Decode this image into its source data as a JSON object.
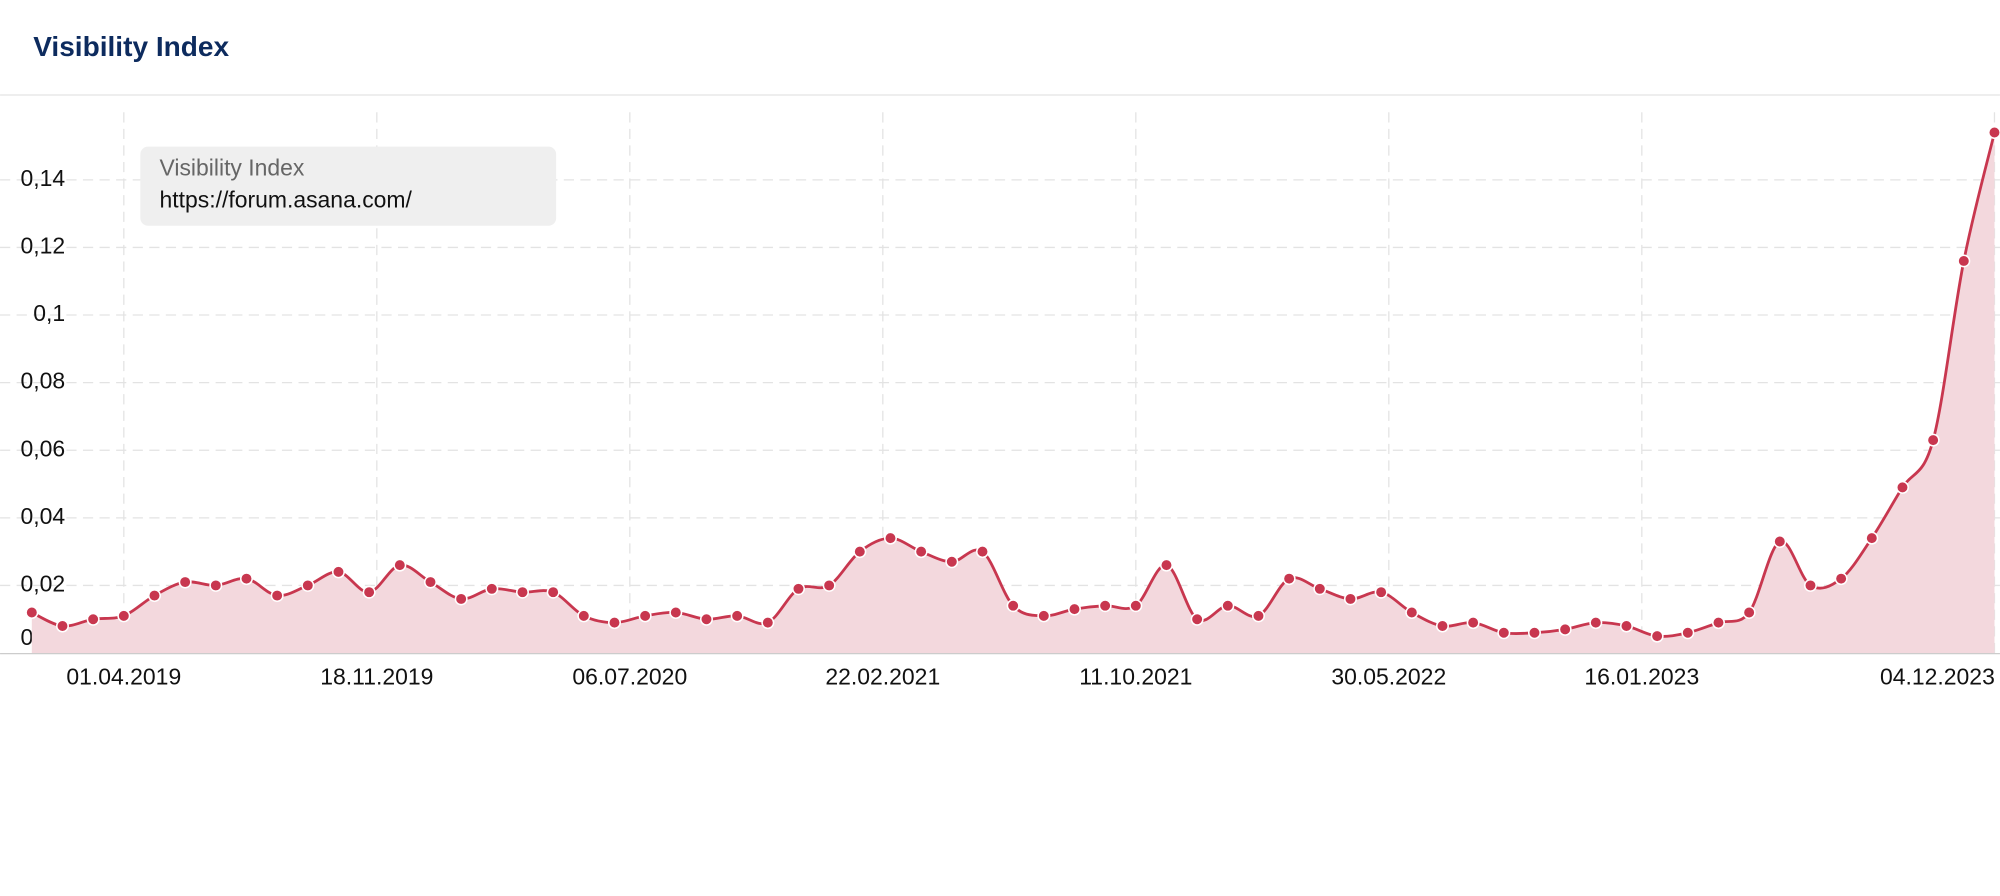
{
  "chart_data": {
    "type": "line",
    "title": "Visibility Index",
    "legend_title": "Visibility Index",
    "x": [
      "07.01.2019",
      "04.02.2019",
      "04.03.2019",
      "01.04.2019",
      "29.04.2019",
      "27.05.2019",
      "24.06.2019",
      "22.07.2019",
      "19.08.2019",
      "16.09.2019",
      "14.10.2019",
      "11.11.2019",
      "09.12.2019",
      "06.01.2020",
      "03.02.2020",
      "02.03.2020",
      "30.03.2020",
      "27.04.2020",
      "25.05.2020",
      "22.06.2020",
      "20.07.2020",
      "17.08.2020",
      "14.09.2020",
      "12.10.2020",
      "09.11.2020",
      "07.12.2020",
      "04.01.2021",
      "01.02.2021",
      "01.03.2021",
      "29.03.2021",
      "26.04.2021",
      "24.05.2021",
      "21.06.2021",
      "19.07.2021",
      "16.08.2021",
      "13.09.2021",
      "11.10.2021",
      "08.11.2021",
      "06.12.2021",
      "03.01.2022",
      "31.01.2022",
      "28.02.2022",
      "28.03.2022",
      "25.04.2022",
      "23.05.2022",
      "20.06.2022",
      "18.07.2022",
      "15.08.2022",
      "12.09.2022",
      "10.10.2022",
      "07.11.2022",
      "05.12.2022",
      "02.01.2023",
      "30.01.2023",
      "27.02.2023",
      "27.03.2023",
      "24.04.2023",
      "22.05.2023",
      "19.06.2023",
      "17.07.2023",
      "14.08.2023",
      "11.09.2023",
      "09.10.2023",
      "06.11.2023",
      "04.12.2023"
    ],
    "series": [
      {
        "name": "https://forum.asana.com/",
        "color": "#c8374f",
        "fill": "#f3d8dd",
        "values": [
          0.012,
          0.008,
          0.01,
          0.011,
          0.017,
          0.021,
          0.02,
          0.022,
          0.017,
          0.02,
          0.024,
          0.018,
          0.026,
          0.021,
          0.016,
          0.019,
          0.018,
          0.018,
          0.011,
          0.009,
          0.011,
          0.012,
          0.01,
          0.011,
          0.009,
          0.019,
          0.02,
          0.03,
          0.034,
          0.03,
          0.027,
          0.03,
          0.014,
          0.011,
          0.013,
          0.014,
          0.014,
          0.026,
          0.01,
          0.014,
          0.011,
          0.022,
          0.019,
          0.016,
          0.018,
          0.012,
          0.008,
          0.009,
          0.006,
          0.006,
          0.007,
          0.009,
          0.008,
          0.005,
          0.006,
          0.009,
          0.012,
          0.033,
          0.02,
          0.022,
          0.034,
          0.049,
          0.063,
          0.116,
          0.154
        ]
      }
    ],
    "xlim": [
      "09.12.2018",
      "09.12.2023"
    ],
    "xticks": [
      "01.04.2019",
      "18.11.2019",
      "06.07.2020",
      "22.02.2021",
      "11.10.2021",
      "30.05.2022",
      "16.01.2023",
      "04.12.2023"
    ],
    "ylim": [
      0,
      0.16
    ],
    "yticks": [
      0,
      {
        "value": 0.02,
        "label": "0,02"
      },
      {
        "value": 0.04,
        "label": "0,04"
      },
      {
        "value": 0.06,
        "label": "0,06"
      },
      {
        "value": 0.08,
        "label": "0,08"
      },
      {
        "value": 0.1,
        "label": "0,1"
      },
      {
        "value": 0.12,
        "label": "0,12"
      },
      {
        "value": 0.14,
        "label": "0,14"
      }
    ],
    "grid": true
  }
}
